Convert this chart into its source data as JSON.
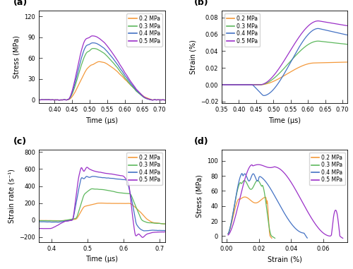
{
  "colors": {
    "0.2 MPa": "#F4993B",
    "0.3 MPa": "#5DB85D",
    "0.4 MPa": "#4472C4",
    "0.5 MPa": "#9B30C8"
  },
  "legend_labels": [
    "0.2 MPa",
    "0.3 MPa",
    "0.4 MPa",
    "0.5 MPa"
  ],
  "panel_labels": [
    "(a)",
    "(b)",
    "(c)",
    "(d)"
  ],
  "subplot_a": {
    "xlabel": "Time (μs)",
    "ylabel": "Stress (MPa)",
    "xlim": [
      0.355,
      0.715
    ],
    "ylim": [
      -5,
      128
    ],
    "xticks": [
      0.4,
      0.45,
      0.5,
      0.55,
      0.6,
      0.65,
      0.7
    ],
    "yticks": [
      0,
      30,
      60,
      90,
      120
    ]
  },
  "subplot_b": {
    "xlabel": "Time (μs)",
    "ylabel": "Strain (%)",
    "xlim": [
      0.35,
      0.715
    ],
    "ylim": [
      -0.022,
      0.088
    ],
    "xticks": [
      0.35,
      0.4,
      0.45,
      0.5,
      0.55,
      0.6,
      0.65,
      0.7
    ],
    "yticks": [
      -0.02,
      0.0,
      0.02,
      0.04,
      0.06,
      0.08
    ]
  },
  "subplot_c": {
    "xlabel": "Time (μs)",
    "ylabel": "Strain rate (s⁻¹)",
    "xlim": [
      0.365,
      0.715
    ],
    "ylim": [
      -260,
      830
    ],
    "xticks": [
      0.4,
      0.5,
      0.6,
      0.7
    ],
    "yticks": [
      -200,
      0,
      200,
      400,
      600,
      800
    ]
  },
  "subplot_d": {
    "xlabel": "Strain (%)",
    "ylabel": "Stress (MPa)",
    "xlim": [
      -0.003,
      0.075
    ],
    "ylim": [
      -8,
      115
    ],
    "xticks": [
      0.0,
      0.02,
      0.04,
      0.06
    ],
    "yticks": [
      0,
      20,
      40,
      60,
      80,
      100
    ]
  }
}
